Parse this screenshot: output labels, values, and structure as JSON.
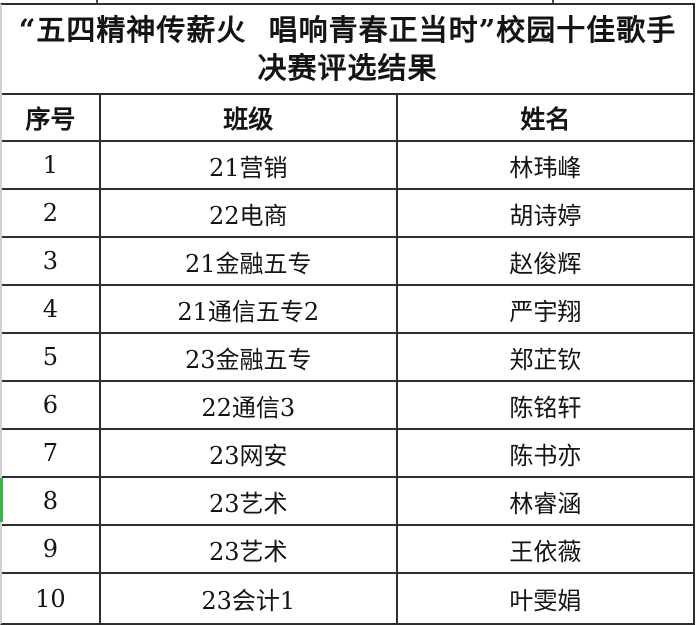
{
  "document": {
    "title_line1": "“五四精神传薪火  唱响青春正当时”校园十佳歌手",
    "title_line2": "决赛评选结果"
  },
  "table": {
    "headers": [
      "序号",
      "班级",
      "姓名"
    ],
    "rows": [
      {
        "num": "1",
        "class_name": "21营销",
        "name": "林玮峰"
      },
      {
        "num": "2",
        "class_name": "22电商",
        "name": "胡诗婷"
      },
      {
        "num": "3",
        "class_name": "21金融五专",
        "name": "赵俊辉"
      },
      {
        "num": "4",
        "class_name": "21通信五专2",
        "name": "严宇翔"
      },
      {
        "num": "5",
        "class_name": "23金融五专",
        "name": "郑芷钦"
      },
      {
        "num": "6",
        "class_name": "22通信3",
        "name": "陈铭轩"
      },
      {
        "num": "7",
        "class_name": "23网安",
        "name": "陈书亦"
      },
      {
        "num": "8",
        "class_name": "23艺术",
        "name": "林睿涵"
      },
      {
        "num": "9",
        "class_name": "23艺术",
        "name": "王依薇"
      },
      {
        "num": "10",
        "class_name": "23会计1",
        "name": "叶雯娟"
      }
    ]
  },
  "colors": {
    "border": "#2e2e2e",
    "left_edge_border": "#cfcfcf",
    "row8_marker_green": "#3eb448",
    "text": "#141414",
    "background": "#ffffff"
  }
}
